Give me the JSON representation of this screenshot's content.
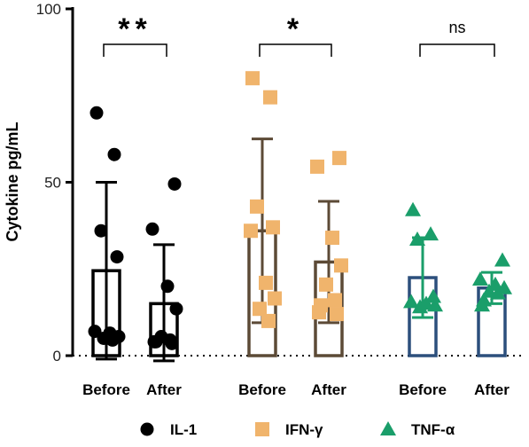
{
  "chart_data": {
    "type": "bar",
    "ylabel": "Cytokine pg/mL",
    "xlabel": "",
    "ylim": [
      0,
      100
    ],
    "yticks": [
      0,
      50,
      100
    ],
    "categories": [
      "Before",
      "After",
      "Before",
      "After",
      "Before",
      "After"
    ],
    "legend_position": "bottom",
    "groups": [
      {
        "name": "IL-1",
        "marker": "circle",
        "color": "#000000",
        "bar_edge_color": "#000000",
        "bars": [
          {
            "category": "Before",
            "mean": 24.5,
            "sd": 25.5,
            "points": [
              70,
              58,
              36,
              28.5,
              7,
              6.5,
              5.5,
              5,
              4.5
            ]
          },
          {
            "category": "After",
            "mean": 15,
            "sd": 17,
            "points": [
              49.5,
              36.5,
              20,
              13.5,
              5.5,
              4.5,
              4,
              4,
              3.5
            ]
          }
        ],
        "significance": "**"
      },
      {
        "name": "IFN-γ",
        "marker": "square",
        "color": "#f0b46c",
        "bar_edge_color": "#5c4a36",
        "bars": [
          {
            "category": "Before",
            "mean": 36,
            "sd": 26.5,
            "points": [
              80,
              74.5,
              43,
              37,
              36,
              21,
              16.5,
              13.5,
              10
            ]
          },
          {
            "category": "After",
            "mean": 27,
            "sd": 17.5,
            "points": [
              57,
              54.5,
              34,
              26,
              20.5,
              16,
              14.5,
              12.5,
              12
            ]
          }
        ],
        "significance": "*"
      },
      {
        "name": "TNF-α",
        "marker": "triangle",
        "color": "#1a9e6a",
        "bar_edge_color": "#2c4f7c",
        "bars": [
          {
            "category": "Before",
            "mean": 22.5,
            "sd": 11.5,
            "points": [
              42,
              35,
              33.5,
              17,
              15.5,
              15,
              14.5,
              14
            ]
          },
          {
            "category": "After",
            "mean": 19.5,
            "sd": 4.5,
            "points": [
              27.5,
              22,
              20.5,
              19.5,
              18.5,
              18,
              16,
              14.5
            ]
          }
        ],
        "significance": "ns"
      }
    ]
  }
}
